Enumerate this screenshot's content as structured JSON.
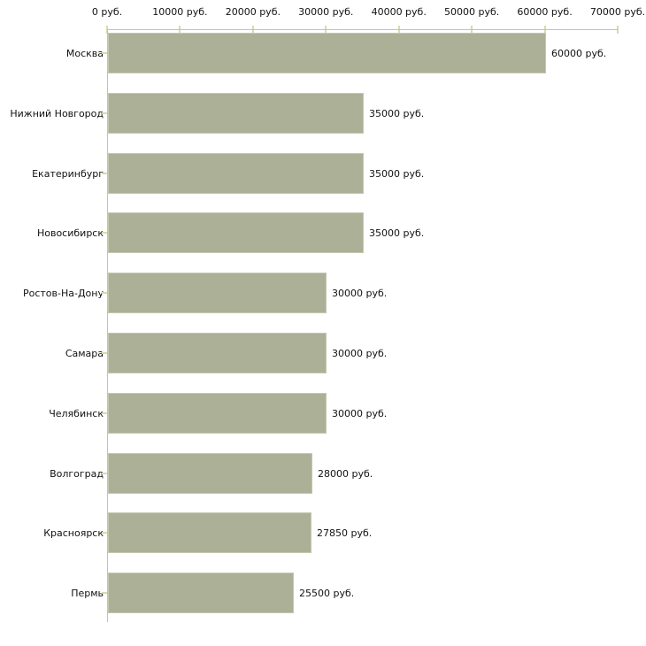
{
  "chart_data": {
    "type": "bar",
    "orientation": "horizontal",
    "title": "",
    "categories": [
      "Москва",
      "Нижний Новгород",
      "Екатеринбург",
      "Новосибирск",
      "Ростов-На-Дону",
      "Самара",
      "Челябинск",
      "Волгоград",
      "Красноярск",
      "Пермь"
    ],
    "values": [
      60000,
      35000,
      35000,
      35000,
      30000,
      30000,
      30000,
      28000,
      27850,
      25500
    ],
    "value_labels": [
      "60000 руб.",
      "35000 руб.",
      "35000 руб.",
      "35000 руб.",
      "30000 руб.",
      "30000 руб.",
      "30000 руб.",
      "28000 руб.",
      "27850 руб.",
      "25500 руб."
    ],
    "x_axis": {
      "position": "top",
      "min": 0,
      "max": 70000,
      "ticks": [
        0,
        10000,
        20000,
        30000,
        40000,
        50000,
        60000,
        70000
      ],
      "tick_labels": [
        "0 руб.",
        "10000 руб.",
        "20000 руб.",
        "30000 руб.",
        "40000 руб.",
        "50000 руб.",
        "60000 руб.",
        "70000 руб."
      ]
    },
    "ylabel": "",
    "xlabel": "",
    "legend": "none",
    "grid": false,
    "colors": {
      "bar_fill": "#abb096",
      "bar_border": "#c4c8b0",
      "axis_line": "#c0c0c0",
      "tick_mark": "#d9dbae",
      "text": "#111111",
      "background": "#ffffff"
    }
  }
}
